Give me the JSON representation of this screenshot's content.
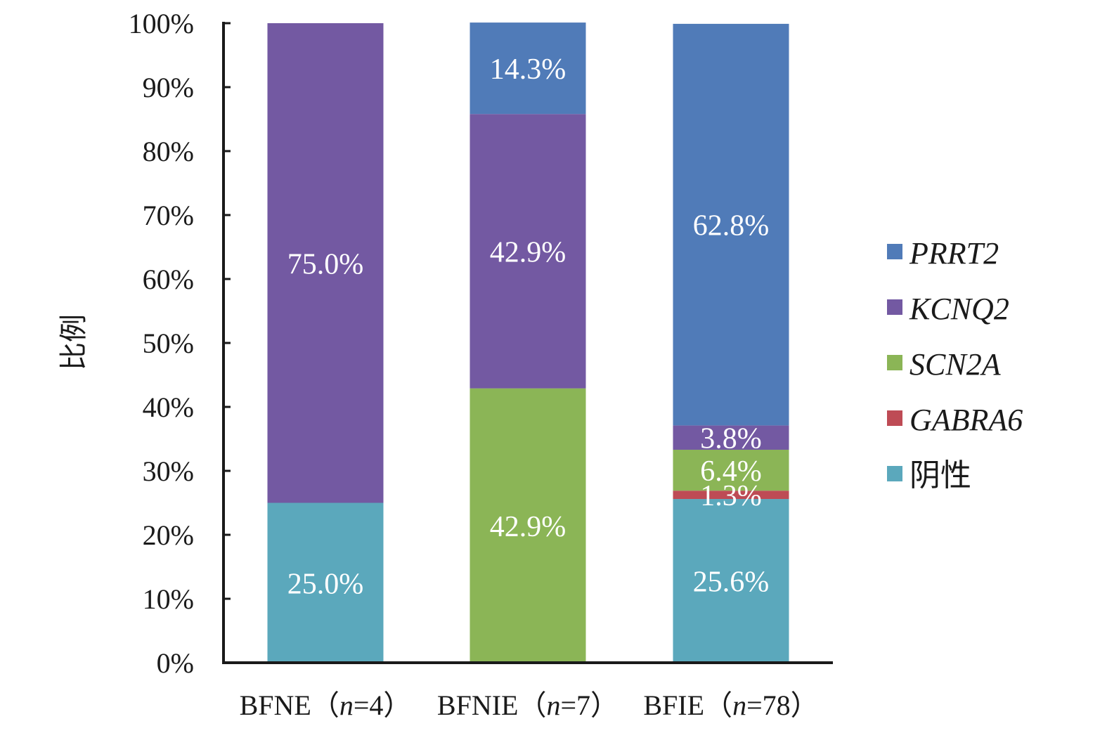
{
  "chart_data": {
    "type": "bar",
    "stacked": true,
    "ylabel": "比例",
    "ylim": [
      0,
      100
    ],
    "y_ticks": [
      "0%",
      "10%",
      "20%",
      "30%",
      "40%",
      "50%",
      "60%",
      "70%",
      "80%",
      "90%",
      "100%"
    ],
    "categories": [
      "BFNE（n=4）",
      "BFNIE（n=7）",
      "BFIE（n=78）"
    ],
    "categories_parts": [
      {
        "prefix": "BFNE（",
        "n": "n",
        "suffix": "=4）"
      },
      {
        "prefix": "BFNIE（",
        "n": "n",
        "suffix": "=7）"
      },
      {
        "prefix": "BFIE（",
        "n": "n",
        "suffix": "=78）"
      }
    ],
    "legend_position": "right",
    "grid": false,
    "series": [
      {
        "name": "阴性",
        "color": "#5BA8BC",
        "italic": false,
        "values": [
          25.0,
          0,
          25.6
        ],
        "labels": [
          "25.0%",
          "",
          "25.6%"
        ]
      },
      {
        "name": "GABRA6",
        "color": "#BE4B55",
        "italic": true,
        "values": [
          0,
          0,
          1.3
        ],
        "labels": [
          "",
          "",
          "1.3%"
        ]
      },
      {
        "name": "SCN2A",
        "color": "#8BB556",
        "italic": true,
        "values": [
          0,
          42.9,
          6.4
        ],
        "labels": [
          "",
          "42.9%",
          "6.4%"
        ]
      },
      {
        "name": "KCNQ2",
        "color": "#7359A2",
        "italic": true,
        "values": [
          75.0,
          42.9,
          3.8
        ],
        "labels": [
          "75.0%",
          "42.9%",
          "3.8%"
        ]
      },
      {
        "name": "PRRT2",
        "color": "#507BB8",
        "italic": true,
        "values": [
          0,
          14.3,
          62.8
        ],
        "labels": [
          "",
          "14.3%",
          "62.8%"
        ]
      }
    ],
    "legend_order": [
      "PRRT2",
      "KCNQ2",
      "SCN2A",
      "GABRA6",
      "阴性"
    ]
  }
}
